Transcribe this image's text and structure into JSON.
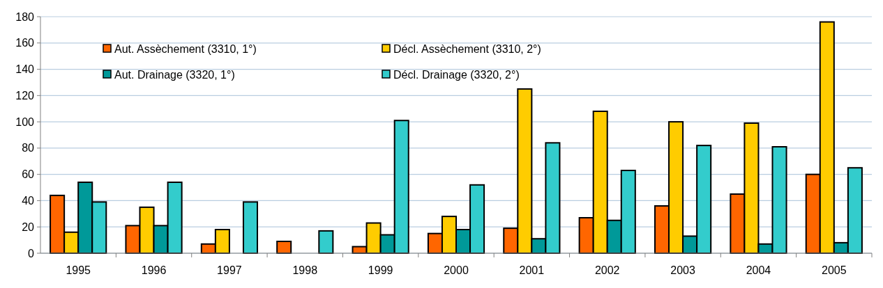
{
  "chart_data": {
    "type": "bar",
    "categories": [
      "1995",
      "1996",
      "1997",
      "1998",
      "1999",
      "2000",
      "2001",
      "2002",
      "2003",
      "2004",
      "2005"
    ],
    "series": [
      {
        "name": "Aut. Assèchement (3310, 1°)",
        "color": "#ff6600",
        "values": [
          44,
          21,
          7,
          9,
          5,
          15,
          19,
          27,
          36,
          45,
          60
        ]
      },
      {
        "name": "Décl. Assèchement (3310, 2°)",
        "color": "#ffcc00",
        "values": [
          16,
          35,
          18,
          null,
          23,
          28,
          125,
          108,
          100,
          99,
          176
        ]
      },
      {
        "name": "Aut. Drainage (3320, 1°)",
        "color": "#009999",
        "values": [
          54,
          21,
          0,
          null,
          14,
          18,
          11,
          25,
          13,
          7,
          8
        ]
      },
      {
        "name": "Décl. Drainage (3320, 2°)",
        "color": "#33cccc",
        "values": [
          39,
          54,
          39,
          17,
          101,
          52,
          84,
          63,
          82,
          81,
          65
        ]
      }
    ],
    "ylim": [
      0,
      180
    ],
    "yticks": [
      0,
      20,
      40,
      60,
      80,
      100,
      120,
      140,
      160,
      180
    ],
    "grid": "y",
    "legend": "top"
  }
}
